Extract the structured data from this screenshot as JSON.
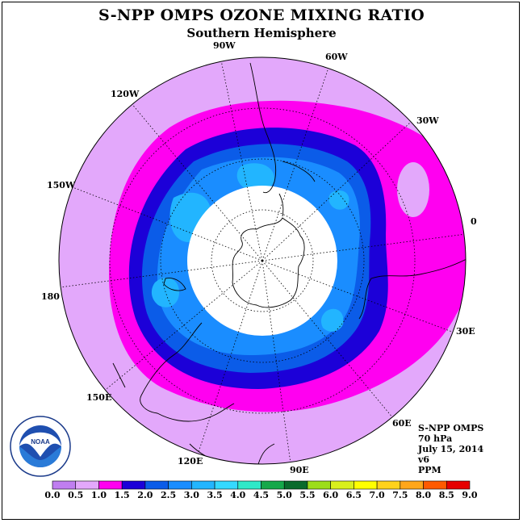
{
  "title": "S-NPP OMPS OZONE MIXING RATIO",
  "subtitle": "Southern Hemisphere",
  "longitude_labels": {
    "w90": "90W",
    "w60": "60W",
    "w30": "30W",
    "e0": "0",
    "e30": "30E",
    "e60": "60E",
    "e90": "90E",
    "e120": "120E",
    "e150": "150E",
    "e180": "180",
    "w150": "150W",
    "w120": "120W"
  },
  "info": {
    "instrument": "S-NPP OMPS",
    "level": "70 hPa",
    "date": "July 15, 2014",
    "version": "v6",
    "units": "PPM"
  },
  "logo": {
    "text": "NOAA",
    "ring_text": "NATIONAL OCEANIC AND ATMOSPHERIC ADMINISTRATION · U.S. DEPARTMENT OF COMMERCE"
  },
  "colorbar": {
    "ticks": [
      "0.0",
      "0.5",
      "1.0",
      "1.5",
      "2.0",
      "2.5",
      "3.0",
      "3.5",
      "4.0",
      "4.5",
      "5.0",
      "5.5",
      "6.0",
      "6.5",
      "7.0",
      "7.5",
      "8.0",
      "8.5",
      "9.0"
    ],
    "colors": [
      "#c07ef0",
      "#e3a8fb",
      "#ff00f0",
      "#1c00d8",
      "#0b5ce8",
      "#1a8dff",
      "#22b5ff",
      "#34d9ff",
      "#2fe8c8",
      "#16a84a",
      "#0a6b2c",
      "#9cdd1a",
      "#d9f01c",
      "#ffff00",
      "#ffd21c",
      "#ffa61a",
      "#ff5a00",
      "#e60000",
      "#8a5a3c"
    ]
  },
  "map_colors": {
    "band_0_5": "#e3a8fb",
    "band_1_0": "#ff00f0",
    "band_1_5": "#1c00d8",
    "band_2_0": "#0b5ce8",
    "band_2_5": "#1a8dff",
    "band_3_0": "#22b5ff",
    "no_data": "#ffffff"
  }
}
